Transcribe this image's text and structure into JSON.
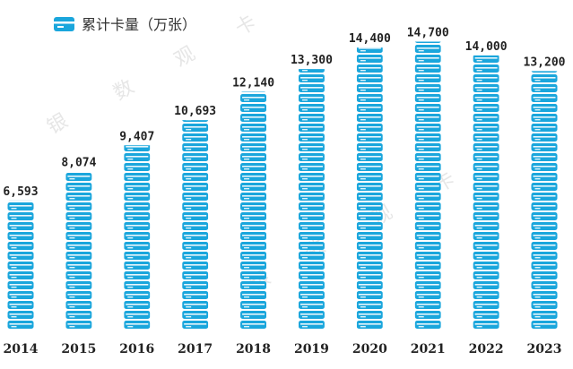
{
  "chart_data": {
    "type": "bar",
    "title": "",
    "legend": [
      "累计卡量（万张）"
    ],
    "legend_position": "top-left",
    "categories": [
      "2014",
      "2015",
      "2016",
      "2017",
      "2018",
      "2019",
      "2020",
      "2021",
      "2022",
      "2023"
    ],
    "values": [
      6593,
      8074,
      9407,
      10693,
      12140,
      13300,
      14400,
      14700,
      14000,
      13200
    ],
    "value_labels": [
      "6,593",
      "8,074",
      "9,407",
      "10,693",
      "12,140",
      "13,300",
      "14,400",
      "14,700",
      "14,000",
      "13,200"
    ],
    "xlabel": "",
    "ylabel": "",
    "ylim": [
      0,
      15000
    ],
    "grid": false
  },
  "watermark": [
    "银",
    "数",
    "观",
    "卡"
  ],
  "colors": {
    "bar": "#1aa6dc",
    "card_stripe": "#ffffff",
    "text": "#222222"
  }
}
